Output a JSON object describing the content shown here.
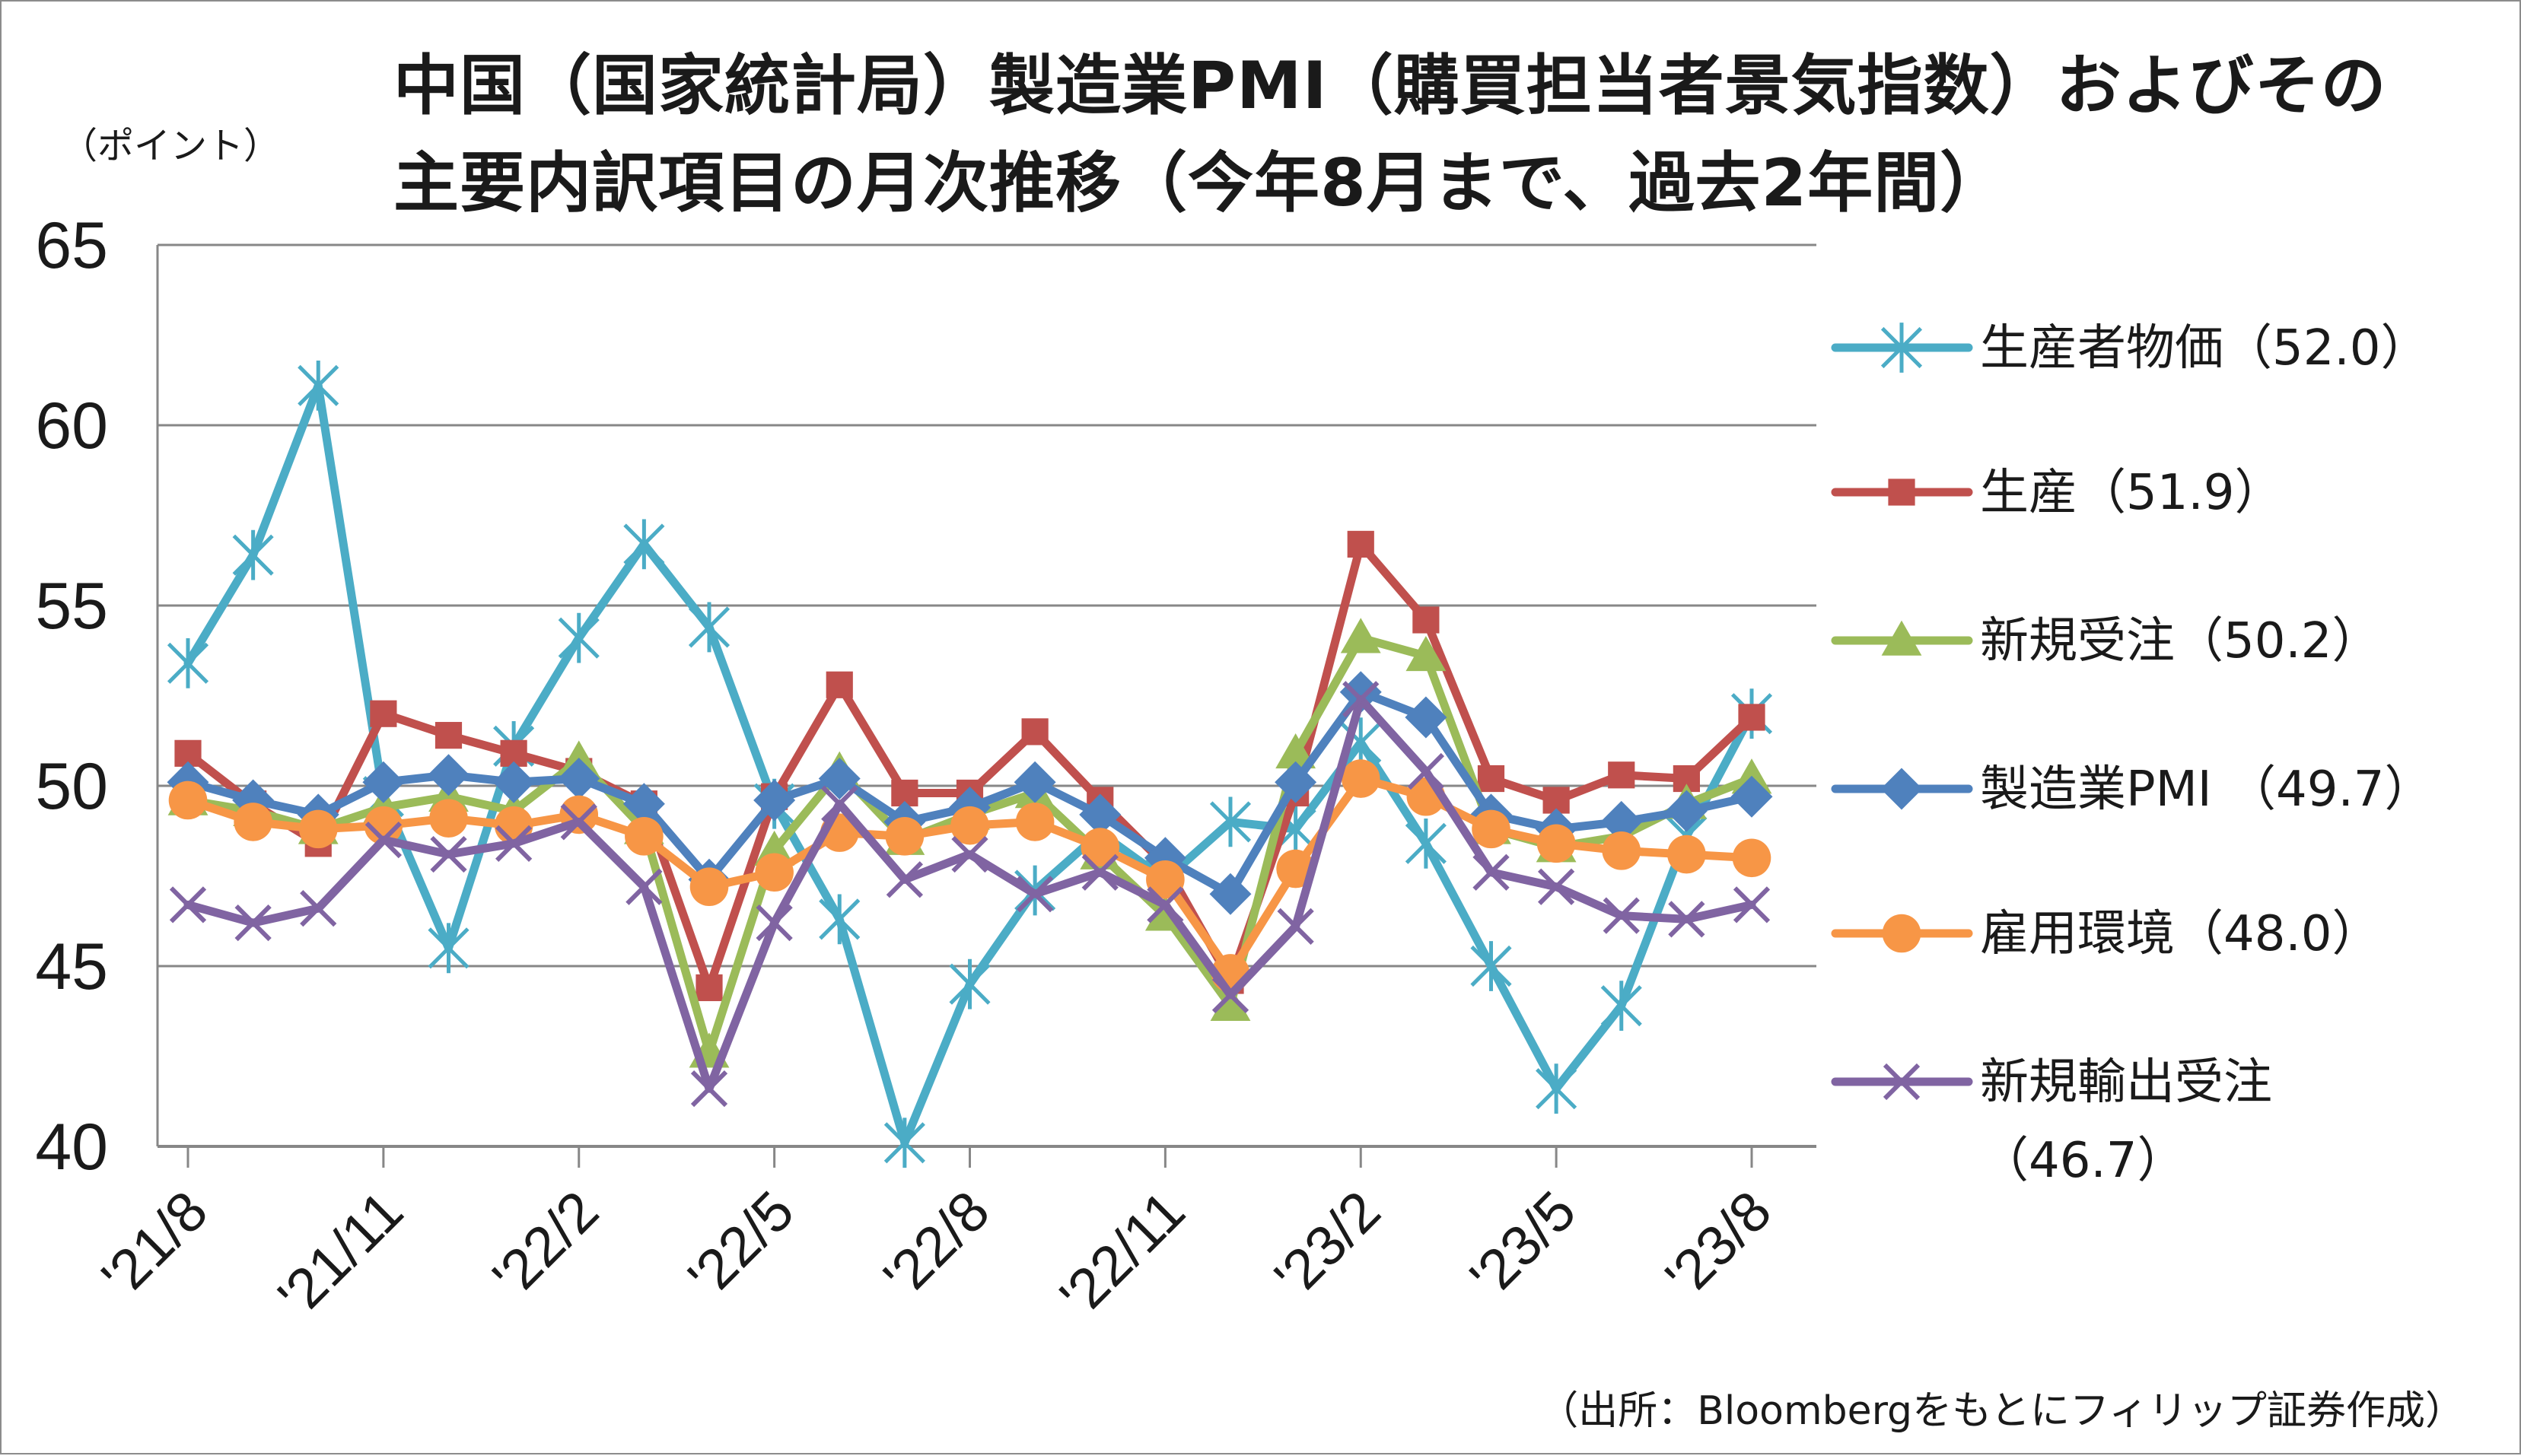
{
  "title": {
    "line1": "中国（国家統計局）製造業PMI（購買担当者景気指数）およびその",
    "line2": "主要内訳項目の月次推移（今年8月まで、過去2年間）"
  },
  "unit_label": "（ポイント）",
  "source_note": "（出所：Bloombergをもとにフィリップ証券作成）",
  "chart_data": {
    "type": "line",
    "title": "中国（国家統計局）製造業PMI（購買担当者景気指数）およびその主要内訳項目の月次推移（今年8月まで、過去2年間）",
    "ylabel": "（ポイント）",
    "ylim": [
      40,
      65
    ],
    "yticks": [
      40,
      45,
      50,
      55,
      60,
      65
    ],
    "grid": true,
    "legend_position": "right",
    "x": [
      "2021-08",
      "2021-09",
      "2021-10",
      "2021-11",
      "2021-12",
      "2022-01",
      "2022-02",
      "2022-03",
      "2022-04",
      "2022-05",
      "2022-06",
      "2022-07",
      "2022-08",
      "2022-09",
      "2022-10",
      "2022-11",
      "2022-12",
      "2023-01",
      "2023-02",
      "2023-03",
      "2023-04",
      "2023-05",
      "2023-06",
      "2023-07",
      "2023-08"
    ],
    "xtick_labels": [
      "'21/8",
      "'21/11",
      "'22/2",
      "'22/5",
      "'22/8",
      "'22/11",
      "'23/2",
      "'23/5",
      "'23/8"
    ],
    "xtick_indices": [
      0,
      3,
      6,
      9,
      12,
      15,
      18,
      21,
      24
    ],
    "series": [
      {
        "name": "生産者物価",
        "legend_label": "生産者物価（52.0）",
        "color": "#4BACC6",
        "marker": "asterisk",
        "values": [
          53.4,
          56.4,
          61.1,
          49.7,
          45.5,
          51.1,
          54.1,
          56.7,
          54.4,
          49.5,
          46.3,
          40.1,
          44.5,
          47.1,
          48.7,
          47.4,
          49.0,
          48.8,
          51.2,
          48.4,
          45.0,
          41.6,
          43.9,
          48.6,
          52.0
        ]
      },
      {
        "name": "生産",
        "legend_label": "生産（51.9）",
        "color": "#C0504D",
        "marker": "square",
        "values": [
          50.9,
          49.5,
          48.4,
          52.0,
          51.4,
          50.9,
          50.4,
          49.5,
          44.4,
          49.7,
          52.8,
          49.8,
          49.8,
          51.5,
          49.6,
          47.8,
          44.6,
          49.8,
          56.7,
          54.6,
          50.2,
          49.6,
          50.3,
          50.2,
          51.9
        ]
      },
      {
        "name": "新規受注",
        "legend_label": "新規受注（50.2）",
        "color": "#9BBB59",
        "marker": "triangle",
        "values": [
          49.6,
          49.3,
          48.8,
          49.4,
          49.7,
          49.3,
          50.7,
          48.8,
          42.6,
          48.2,
          50.4,
          48.5,
          49.2,
          49.8,
          48.1,
          46.4,
          43.9,
          50.9,
          54.1,
          53.6,
          48.8,
          48.3,
          48.6,
          49.5,
          50.2
        ]
      },
      {
        "name": "製造業PMI",
        "legend_label": "製造業PMI （49.7）",
        "color": "#4F81BD",
        "marker": "diamond",
        "values": [
          50.1,
          49.6,
          49.2,
          50.1,
          50.3,
          50.1,
          50.2,
          49.5,
          47.4,
          49.6,
          50.2,
          49.0,
          49.4,
          50.1,
          49.2,
          48.0,
          47.0,
          50.1,
          52.6,
          51.9,
          49.2,
          48.8,
          49.0,
          49.3,
          49.7
        ]
      },
      {
        "name": "雇用環境",
        "legend_label": "雇用環境（48.0）",
        "color": "#F79646",
        "marker": "circle",
        "values": [
          49.6,
          49.0,
          48.8,
          48.9,
          49.1,
          48.9,
          49.2,
          48.6,
          47.2,
          47.6,
          48.7,
          48.6,
          48.9,
          49.0,
          48.3,
          47.4,
          44.8,
          47.7,
          50.2,
          49.7,
          48.8,
          48.4,
          48.2,
          48.1,
          48.0
        ]
      },
      {
        "name": "新規輸出受注",
        "legend_label": "新規輸出受注（46.7）",
        "color": "#8064A2",
        "marker": "x",
        "values": [
          46.7,
          46.2,
          46.6,
          48.5,
          48.1,
          48.4,
          49.0,
          47.2,
          41.6,
          46.2,
          49.5,
          47.4,
          48.1,
          47.0,
          47.6,
          46.7,
          44.2,
          46.1,
          52.4,
          50.4,
          47.6,
          47.2,
          46.4,
          46.3,
          46.7
        ]
      }
    ]
  }
}
